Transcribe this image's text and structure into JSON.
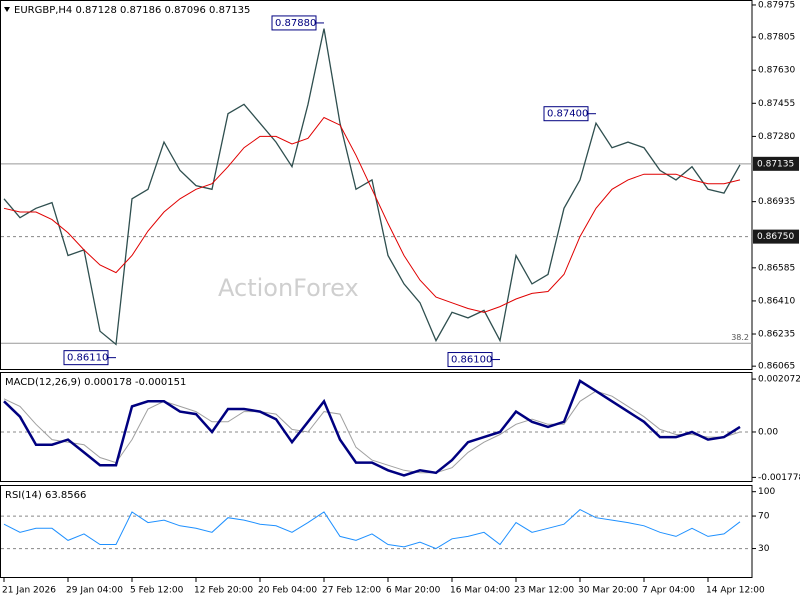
{
  "watermark": "ActionForex",
  "chart_data": [
    {
      "type": "line",
      "title": "EURGBP,H4  0.87128 0.87186 0.87096 0.87135",
      "ylim": [
        0.8605,
        0.87996
      ],
      "yticks": [
        0.87975,
        0.87805,
        {
          "value": 0.8763,
          "label": "0.87630"
        },
        0.87455,
        {
          "value": 0.8728,
          "label": "0.87280"
        },
        0.86935,
        0.86585,
        {
          "value": 0.8641,
          "label": "0.86410"
        },
        0.86235,
        0.86065
      ],
      "series": [
        {
          "color": "#2f4f4f",
          "values": [
            0.8695,
            0.8685,
            0.869,
            0.8693,
            0.8665,
            0.8668,
            0.8625,
            0.8618,
            0.8695,
            0.87,
            0.8725,
            0.871,
            0.8702,
            0.87,
            0.874,
            0.8745,
            0.8735,
            0.8725,
            0.8712,
            0.8745,
            0.8785,
            0.8735,
            0.87,
            0.8705,
            0.8665,
            0.865,
            0.864,
            0.862,
            0.8635,
            0.8632,
            0.8636,
            0.862,
            0.8665,
            0.865,
            0.8655,
            0.869,
            0.8705,
            0.8735,
            0.8722,
            0.8725,
            0.8722,
            0.871,
            0.8705,
            0.8712,
            0.87,
            0.8698,
            0.8713
          ]
        },
        {
          "color": "#e00000",
          "values": [
            0.869,
            0.8688,
            0.8688,
            0.8684,
            0.8677,
            0.8668,
            0.866,
            0.8656,
            0.8665,
            0.8678,
            0.8688,
            0.8695,
            0.87,
            0.8703,
            0.8712,
            0.8722,
            0.8728,
            0.8728,
            0.8724,
            0.8727,
            0.8738,
            0.8734,
            0.8718,
            0.87,
            0.8682,
            0.8665,
            0.8652,
            0.8643,
            0.864,
            0.8637,
            0.8635,
            0.8638,
            0.8642,
            0.8645,
            0.8646,
            0.8655,
            0.8675,
            0.869,
            0.87,
            0.8705,
            0.8708,
            0.8708,
            0.8708,
            0.8705,
            0.8703,
            0.8703,
            0.8705
          ]
        }
      ],
      "levels": [
        {
          "value": 0.87135,
          "label": "0.87135",
          "style": "current"
        },
        {
          "value": 0.8675,
          "label": "0.86750",
          "style": "dashed"
        },
        {
          "value": 0.86186,
          "name": "38.2",
          "style": "fib"
        }
      ],
      "annotations": [
        {
          "index": 20,
          "value": 0.8788,
          "label": "0.87880"
        },
        {
          "index": 37,
          "value": 0.874,
          "label": "0.87400"
        },
        {
          "index": 7,
          "value": 0.8611,
          "label": "0.86110"
        },
        {
          "index": 31,
          "value": 0.861,
          "label": "0.86100"
        }
      ]
    },
    {
      "type": "line",
      "title": "MACD(12,26,9) 0.000178 -0.000151",
      "ylim": [
        -0.00192,
        0.00231
      ],
      "yticks": [
        0.002072,
        {
          "value": 0,
          "label": "0.00"
        },
        -0.001778
      ],
      "levels": [
        {
          "value": 0,
          "style": "dashed"
        }
      ],
      "series": [
        {
          "color": "#a0a0a0",
          "values": [
            0.0013,
            0.001,
            0.0003,
            -0.0003,
            -0.0004,
            -0.0005,
            -0.001,
            -0.0012,
            -0.0003,
            0.0009,
            0.0012,
            0.001,
            0.0008,
            0.0004,
            0.0004,
            0.0008,
            0.0008,
            0.0007,
            0.0001,
            0,
            0.0008,
            0.0007,
            -0.0006,
            -0.0011,
            -0.0013,
            -0.0015,
            -0.0016,
            -0.0016,
            -0.0014,
            -0.0008,
            -0.0004,
            -0.0001,
            0.0003,
            0.0005,
            0.0003,
            0.0003,
            0.0012,
            0.0016,
            0.0014,
            0.001,
            0.0006,
            0.0001,
            -0.0001,
            -0.0001,
            -0.0002,
            -0.0002,
            0
          ]
        },
        {
          "color": "#000080",
          "values": [
            0.0012,
            0.0006,
            -0.0005,
            -0.0005,
            -0.0003,
            -0.0008,
            -0.0013,
            -0.0013,
            0.001,
            0.0012,
            0.0012,
            0.0008,
            0.0007,
            0,
            0.0009,
            0.0009,
            0.0008,
            0.0005,
            -0.0004,
            0.0004,
            0.0012,
            -0.0003,
            -0.0012,
            -0.0012,
            -0.0015,
            -0.0017,
            -0.0015,
            -0.0016,
            -0.0011,
            -0.0004,
            -0.0002,
            0,
            0.0008,
            0.0004,
            0.0002,
            0.0004,
            0.002,
            0.0016,
            0.0012,
            0.0008,
            0.0004,
            -0.0002,
            -0.0002,
            0,
            -0.0003,
            -0.0002,
            0.0002
          ]
        }
      ]
    },
    {
      "type": "line",
      "title": "RSI(14) 63.8566",
      "ylim": [
        -5,
        107
      ],
      "yticks": [
        100,
        70,
        30
      ],
      "levels": [
        {
          "value": 70,
          "style": "dashed"
        },
        {
          "value": 30,
          "style": "dashed"
        }
      ],
      "series": [
        {
          "color": "#1e90ff",
          "values": [
            60,
            50,
            55,
            55,
            40,
            48,
            35,
            35,
            75,
            62,
            65,
            58,
            55,
            50,
            68,
            65,
            60,
            58,
            50,
            62,
            75,
            45,
            40,
            48,
            35,
            32,
            38,
            30,
            42,
            45,
            50,
            35,
            62,
            50,
            55,
            60,
            78,
            68,
            65,
            62,
            58,
            50,
            45,
            55,
            45,
            48,
            63
          ]
        }
      ],
      "categories": [
        "21 Jan 2026",
        null,
        null,
        null,
        "29 Jan 04:00",
        null,
        null,
        null,
        "5 Feb 12:00",
        null,
        null,
        null,
        "12 Feb 20:00",
        null,
        null,
        null,
        "20 Feb 04:00",
        null,
        null,
        null,
        "27 Feb 12:00",
        null,
        null,
        null,
        "6 Mar 20:00",
        null,
        null,
        null,
        "16 Mar 04:00",
        null,
        null,
        null,
        "23 Mar 12:00",
        null,
        null,
        null,
        "30 Mar 20:00",
        null,
        null,
        null,
        "7 Apr 04:00",
        null,
        null,
        null,
        "14 Apr 12:00",
        null,
        null
      ]
    }
  ]
}
